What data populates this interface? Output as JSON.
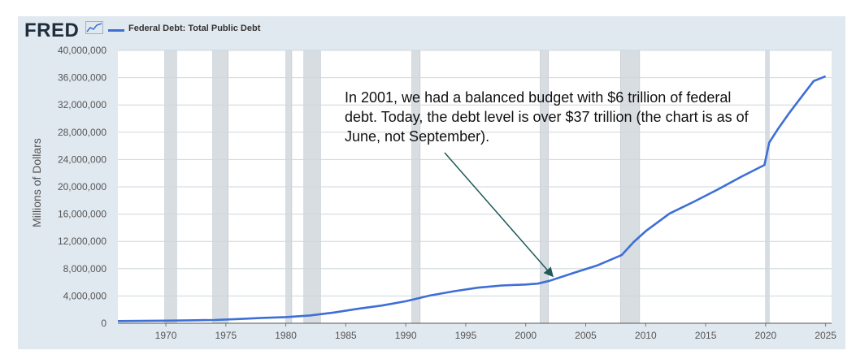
{
  "header": {
    "logo": "FRED",
    "legend_label": "Federal Debt: Total Public Debt"
  },
  "annotation": "In 2001, we had a balanced budget with $6 trillion of federal debt. Today, the debt level is over $37 trillion (the chart is as of June, not September).",
  "colors": {
    "series": "#3d6fd6",
    "recession": "#d8dde2",
    "panel": "#e1e9f0",
    "arrow": "#1f5a5a"
  },
  "chart_data": {
    "type": "line",
    "ylabel": "Millions of Dollars",
    "xlim": [
      1966,
      2025.5
    ],
    "ylim": [
      0,
      40000000
    ],
    "grid": true,
    "legend": "top-left",
    "y_ticks": [
      "0",
      "4,000,000",
      "8,000,000",
      "12,000,000",
      "16,000,000",
      "20,000,000",
      "24,000,000",
      "28,000,000",
      "32,000,000",
      "36,000,000",
      "40,000,000"
    ],
    "x_ticks": [
      "1970",
      "1975",
      "1980",
      "1985",
      "1990",
      "1995",
      "2000",
      "2005",
      "2010",
      "2015",
      "2020",
      "2025"
    ],
    "recessions": [
      [
        1969.9,
        1970.9
      ],
      [
        1973.9,
        1975.2
      ],
      [
        1980.0,
        1980.5
      ],
      [
        1981.5,
        1982.9
      ],
      [
        1990.5,
        1991.2
      ],
      [
        2001.2,
        2001.9
      ],
      [
        2007.9,
        2009.5
      ],
      [
        2020.0,
        2020.3
      ]
    ],
    "series": [
      {
        "name": "Federal Debt: Total Public Debt",
        "x": [
          1966,
          1968,
          1970,
          1972,
          1974,
          1976,
          1978,
          1980,
          1982,
          1984,
          1986,
          1988,
          1990,
          1992,
          1994,
          1996,
          1998,
          2000,
          2001,
          2002,
          2004,
          2006,
          2008,
          2009,
          2010,
          2012,
          2014,
          2016,
          2018,
          2019.9,
          2020.3,
          2021,
          2022,
          2023,
          2024,
          2025
        ],
        "y": [
          320000,
          350000,
          380000,
          430000,
          480000,
          620000,
          780000,
          910000,
          1140000,
          1570000,
          2120000,
          2600000,
          3230000,
          4060000,
          4690000,
          5220000,
          5530000,
          5680000,
          5810000,
          6230000,
          7380000,
          8500000,
          10000000,
          11900000,
          13500000,
          16100000,
          17800000,
          19600000,
          21500000,
          23200000,
          26500000,
          28400000,
          30900000,
          33200000,
          35500000,
          36200000
        ]
      }
    ]
  }
}
